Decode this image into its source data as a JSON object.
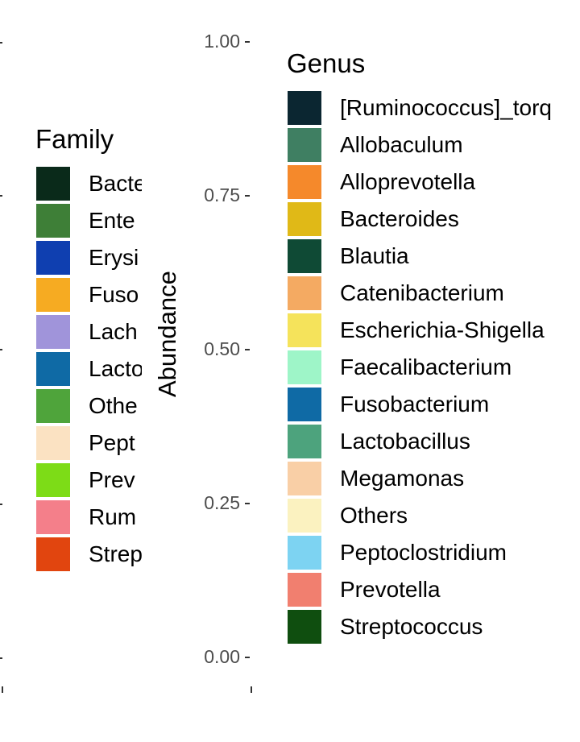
{
  "colors": {
    "tick_text": "#4d4d4d",
    "tick_mark": "#333333",
    "background": "#ffffff"
  },
  "chart_data": [
    {
      "type": "bar",
      "note_visible": "stacked relative abundance bar chart; bars are outside the visible crop",
      "ylabel": "Abundance",
      "ylim": [
        0,
        1
      ],
      "y_ticks": [
        "0.00",
        "0.25",
        "0.50",
        "0.75",
        "1.00"
      ],
      "legend": {
        "title": "Genus",
        "placement": "right",
        "entries": [
          {
            "label": "[Ruminococcus]_torq",
            "color": "#0b2631"
          },
          {
            "label": "Allobaculum",
            "color": "#3f7f62"
          },
          {
            "label": "Alloprevotella",
            "color": "#f5892b"
          },
          {
            "label": "Bacteroides",
            "color": "#e0b917"
          },
          {
            "label": "Blautia",
            "color": "#0f4a35"
          },
          {
            "label": "Catenibacterium",
            "color": "#f4aa62"
          },
          {
            "label": "Escherichia-Shigella",
            "color": "#f5e35b"
          },
          {
            "label": "Faecalibacterium",
            "color": "#9ef5c8"
          },
          {
            "label": "Fusobacterium",
            "color": "#0f6aa5"
          },
          {
            "label": "Lactobacillus",
            "color": "#4da37d"
          },
          {
            "label": "Megamonas",
            "color": "#f9cfa6"
          },
          {
            "label": "Others",
            "color": "#fbf2c0"
          },
          {
            "label": "Peptoclostridium",
            "color": "#7dd3f2"
          },
          {
            "label": "Prevotella",
            "color": "#f17f6f"
          },
          {
            "label": "Streptococcus",
            "color": "#0f4e0f"
          }
        ]
      }
    },
    {
      "type": "bar",
      "legend": {
        "title": "Family",
        "placement": "right",
        "entries": [
          {
            "label": "Bacte",
            "color": "#0a2a1a"
          },
          {
            "label": "Ente",
            "color": "#3e7f37"
          },
          {
            "label": "Erysi",
            "color": "#0f3fb0"
          },
          {
            "label": "Fuso",
            "color": "#f6ab22"
          },
          {
            "label": "Lach",
            "color": "#a094da"
          },
          {
            "label": "Lacto",
            "color": "#0f6aa5"
          },
          {
            "label": "Othe",
            "color": "#4fa43b"
          },
          {
            "label": "Pept",
            "color": "#fbe2c2"
          },
          {
            "label": "Prev",
            "color": "#7ddc17"
          },
          {
            "label": "Rum",
            "color": "#f47f8a"
          },
          {
            "label": "Strep",
            "color": "#e1450f"
          }
        ]
      }
    }
  ]
}
